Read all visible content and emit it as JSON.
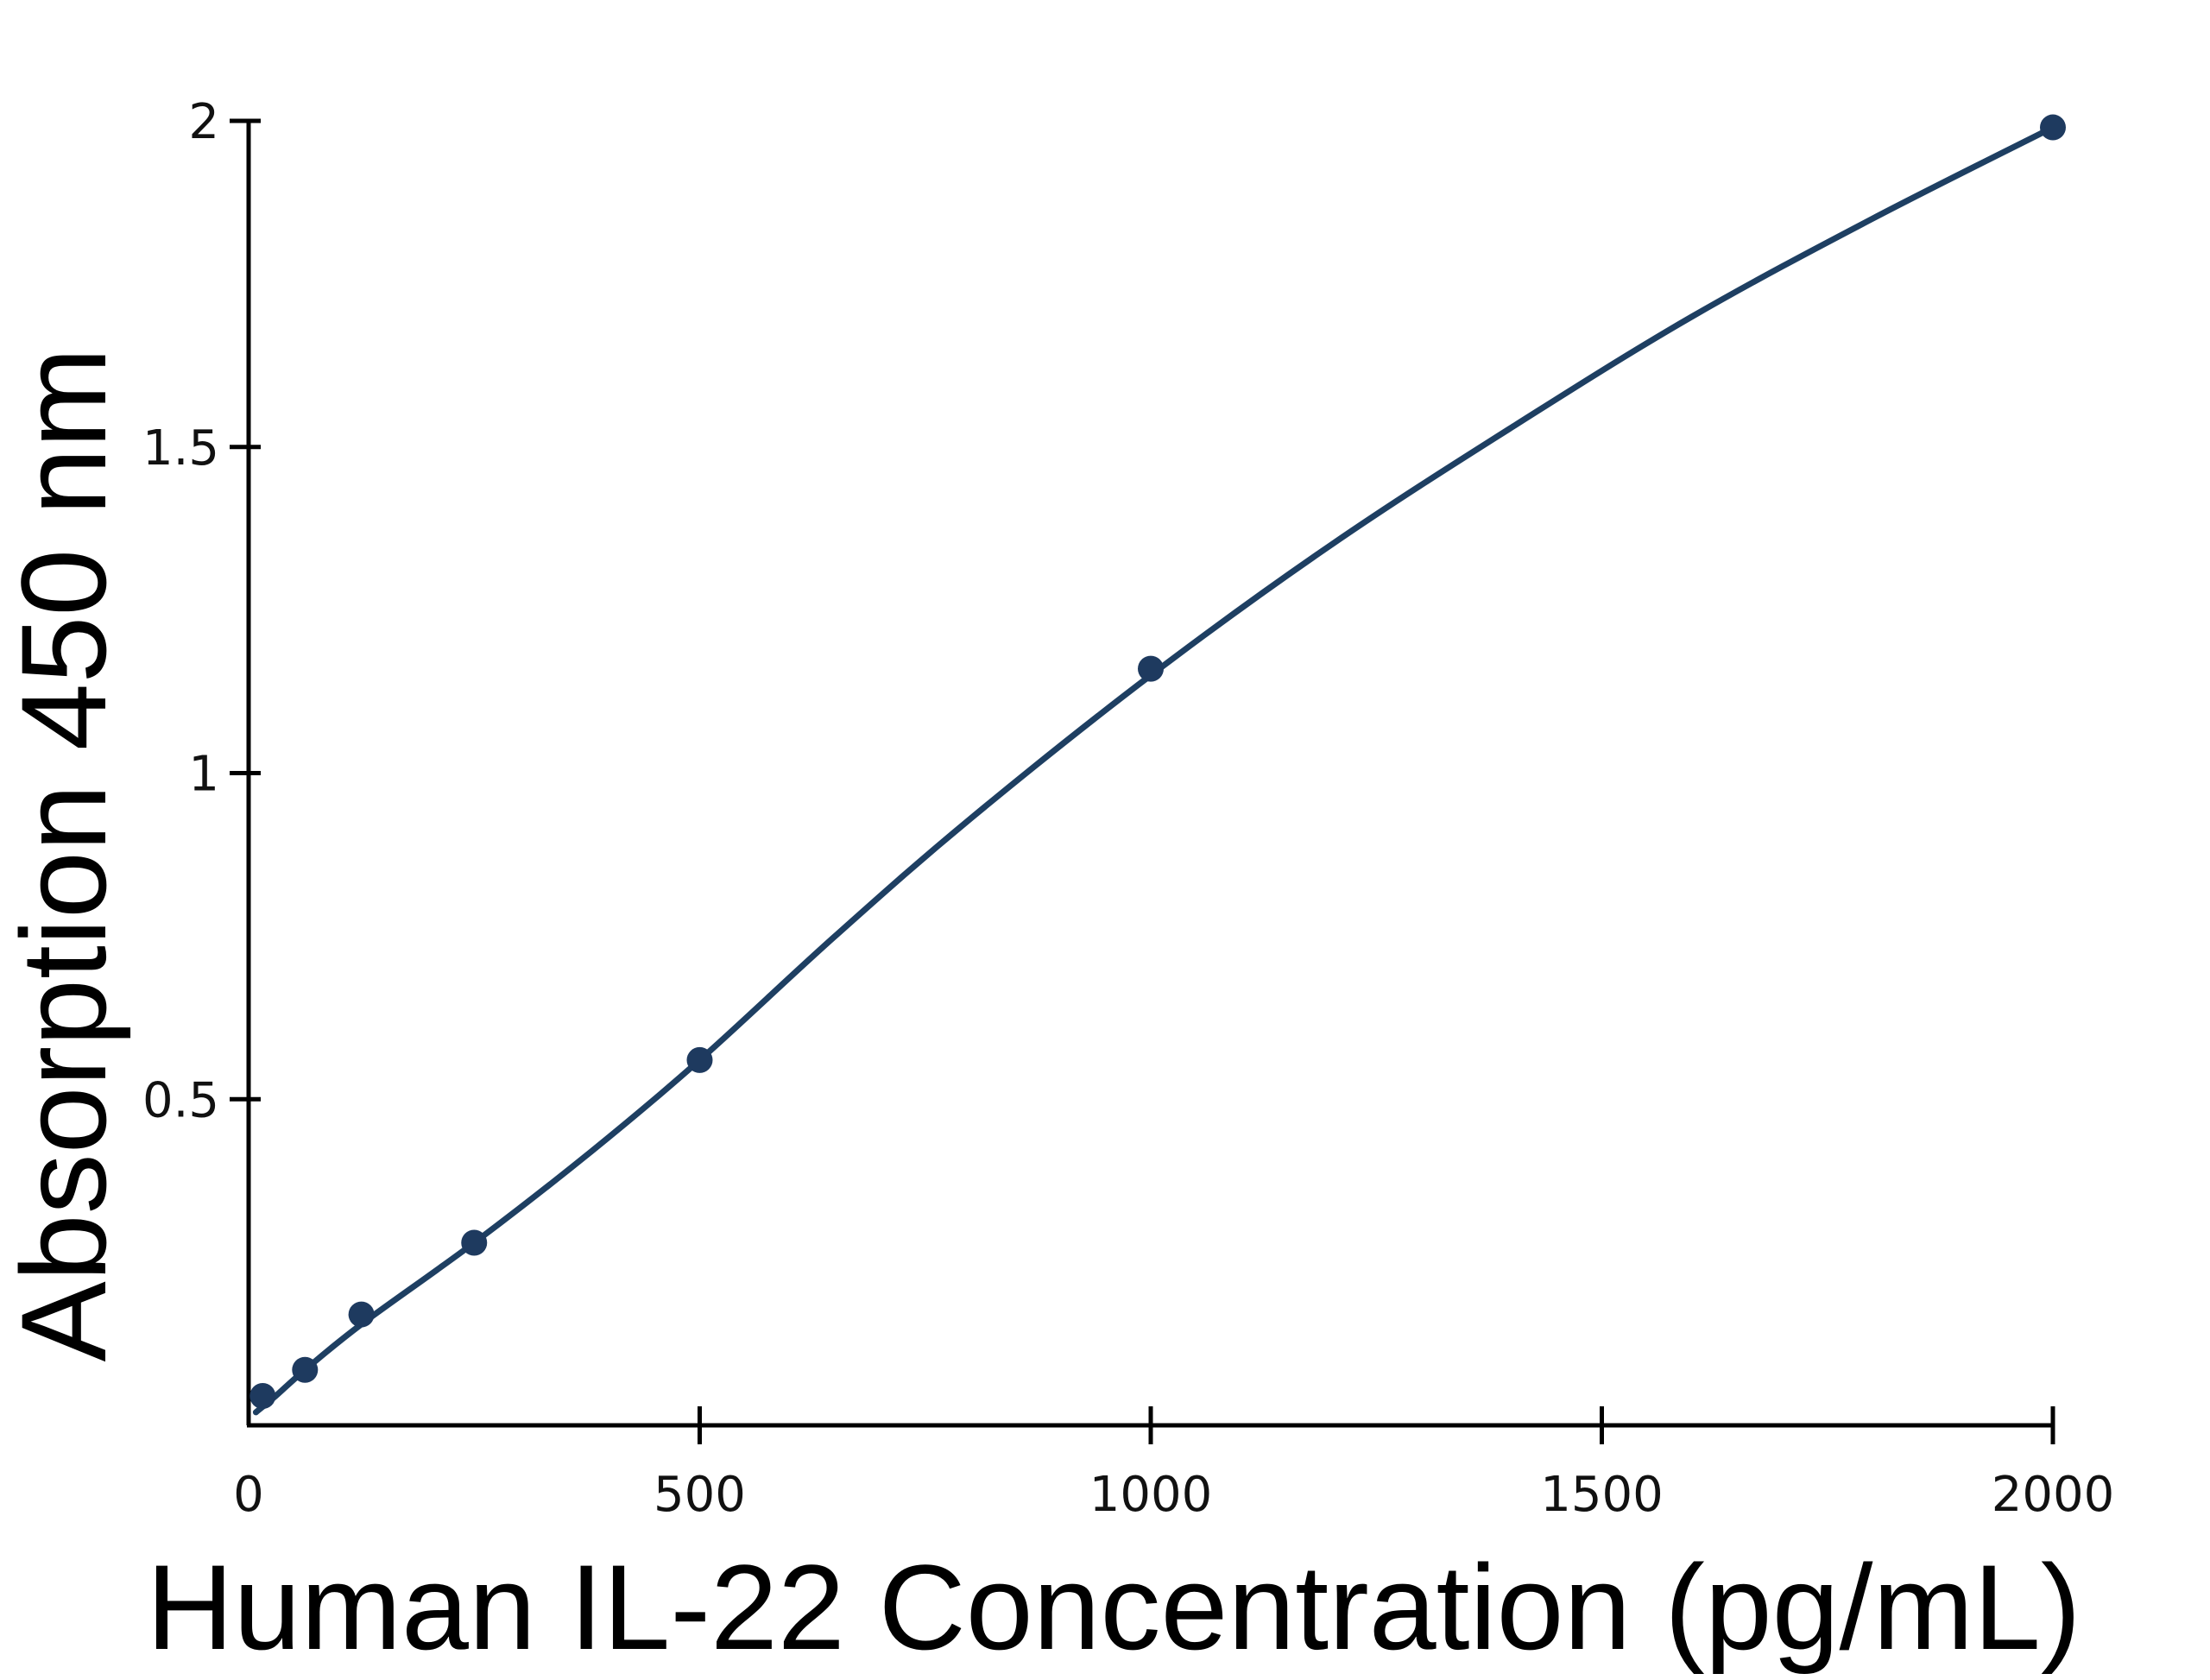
{
  "chart_data": {
    "type": "scatter",
    "xlabel": "Human IL-22 Concentration (pg/mL)",
    "ylabel": "Absorption 450 nm",
    "xlim": [
      0,
      2000
    ],
    "ylim": [
      0,
      2
    ],
    "x_ticks": [
      "0",
      "500",
      "1000",
      "1500",
      "2000"
    ],
    "y_ticks": [
      "0.5",
      "1",
      "1.5",
      "2"
    ],
    "grid": false,
    "legend": "none",
    "series": [
      {
        "points": [
          {
            "x": 15.6,
            "y": 0.045
          },
          {
            "x": 62.5,
            "y": 0.085
          },
          {
            "x": 125,
            "y": 0.17
          },
          {
            "x": 250,
            "y": 0.28
          },
          {
            "x": 500,
            "y": 0.56
          },
          {
            "x": 1000,
            "y": 1.16
          },
          {
            "x": 2000,
            "y": 1.99
          }
        ]
      }
    ],
    "fit_curve": [
      {
        "x": 8,
        "y": 0.02
      },
      {
        "x": 30,
        "y": 0.045
      },
      {
        "x": 62.5,
        "y": 0.085
      },
      {
        "x": 125,
        "y": 0.155
      },
      {
        "x": 250,
        "y": 0.28
      },
      {
        "x": 380,
        "y": 0.42
      },
      {
        "x": 500,
        "y": 0.56
      },
      {
        "x": 650,
        "y": 0.75
      },
      {
        "x": 800,
        "y": 0.93
      },
      {
        "x": 1000,
        "y": 1.15
      },
      {
        "x": 1200,
        "y": 1.35
      },
      {
        "x": 1400,
        "y": 1.53
      },
      {
        "x": 1600,
        "y": 1.7
      },
      {
        "x": 1800,
        "y": 1.85
      },
      {
        "x": 2000,
        "y": 1.99
      }
    ],
    "colors": {
      "marker": "#1e3a5f",
      "curve": "#1e3f62"
    }
  }
}
